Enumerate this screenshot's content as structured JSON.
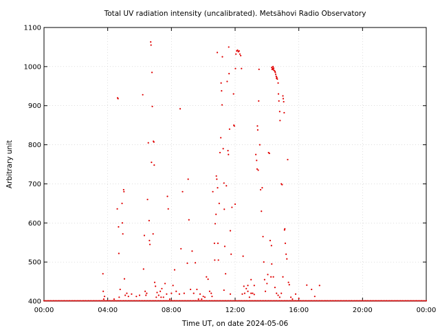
{
  "chart_data": {
    "type": "scatter",
    "title": "Total UV radiation intensity (uncalibrated). Metsähovi Radio Observatory",
    "xlabel": "Time UT, on date 2024-05-06",
    "ylabel": "Arbitrary unit",
    "x_unit": "hours UT",
    "xlim": [
      0,
      24
    ],
    "ylim": [
      400,
      1100
    ],
    "x_ticks": [
      {
        "value": 0,
        "label": "00:00"
      },
      {
        "value": 4,
        "label": "04:00"
      },
      {
        "value": 8,
        "label": "08:00"
      },
      {
        "value": 12,
        "label": "12:00"
      },
      {
        "value": 16,
        "label": "16:00"
      },
      {
        "value": 20,
        "label": "20:00"
      },
      {
        "value": 24,
        "label": "00:00"
      }
    ],
    "y_ticks": [
      {
        "value": 400,
        "label": "400"
      },
      {
        "value": 500,
        "label": "500"
      },
      {
        "value": 600,
        "label": "600"
      },
      {
        "value": 700,
        "label": "700"
      },
      {
        "value": 800,
        "label": "800"
      },
      {
        "value": 900,
        "label": "900"
      },
      {
        "value": 1000,
        "label": "1000"
      },
      {
        "value": 1100,
        "label": "1100"
      }
    ],
    "grid": true,
    "marker_color": "#e00000",
    "baseline": {
      "value": 401,
      "x_start": 0,
      "x_end": 24,
      "x_step": 0.1
    },
    "series": [
      {
        "points": [
          [
            3.7,
            470
          ],
          [
            3.72,
            425
          ],
          [
            3.75,
            405
          ],
          [
            3.8,
            412
          ],
          [
            4.6,
            636
          ],
          [
            4.62,
            920
          ],
          [
            4.65,
            918
          ],
          [
            4.68,
            590
          ],
          [
            4.7,
            522
          ],
          [
            4.72,
            410
          ],
          [
            4.78,
            430
          ],
          [
            4.9,
            650
          ],
          [
            4.92,
            600
          ],
          [
            4.95,
            572
          ],
          [
            5.0,
            685
          ],
          [
            5.02,
            680
          ],
          [
            5.05,
            457
          ],
          [
            5.1,
            415
          ],
          [
            5.2,
            420
          ],
          [
            5.3,
            412
          ],
          [
            6.2,
            928
          ],
          [
            6.25,
            482
          ],
          [
            6.3,
            568
          ],
          [
            6.35,
            425
          ],
          [
            6.4,
            415
          ],
          [
            6.45,
            420
          ],
          [
            6.5,
            660
          ],
          [
            6.55,
            805
          ],
          [
            6.6,
            606
          ],
          [
            6.62,
            555
          ],
          [
            6.65,
            545
          ],
          [
            6.7,
            1063
          ],
          [
            6.72,
            1055
          ],
          [
            6.75,
            755
          ],
          [
            6.78,
            985
          ],
          [
            6.8,
            898
          ],
          [
            6.85,
            572
          ],
          [
            6.87,
            809
          ],
          [
            6.9,
            807
          ],
          [
            6.92,
            748
          ],
          [
            6.95,
            448
          ],
          [
            7.0,
            438
          ],
          [
            7.05,
            410
          ],
          [
            7.1,
            422
          ],
          [
            7.2,
            415
          ],
          [
            7.3,
            425
          ],
          [
            7.4,
            432
          ],
          [
            7.5,
            410
          ],
          [
            7.6,
            445
          ],
          [
            7.7,
            418
          ],
          [
            7.75,
            668
          ],
          [
            7.8,
            636
          ],
          [
            7.9,
            405
          ],
          [
            8.0,
            420
          ],
          [
            8.1,
            440
          ],
          [
            8.2,
            480
          ],
          [
            8.3,
            425
          ],
          [
            8.5,
            418
          ],
          [
            8.55,
            892
          ],
          [
            8.6,
            534
          ],
          [
            8.7,
            680
          ],
          [
            8.8,
            420
          ],
          [
            9.0,
            497
          ],
          [
            9.05,
            712
          ],
          [
            9.1,
            608
          ],
          [
            9.2,
            430
          ],
          [
            9.3,
            528
          ],
          [
            9.4,
            420
          ],
          [
            9.5,
            498
          ],
          [
            9.6,
            430
          ],
          [
            9.7,
            405
          ],
          [
            9.8,
            418
          ],
          [
            10.0,
            412
          ],
          [
            10.2,
            462
          ],
          [
            10.3,
            456
          ],
          [
            10.4,
            425
          ],
          [
            10.6,
            680
          ],
          [
            10.7,
            548
          ],
          [
            10.72,
            505
          ],
          [
            10.75,
            598
          ],
          [
            10.8,
            622
          ],
          [
            10.82,
            720
          ],
          [
            10.85,
            712
          ],
          [
            10.88,
            1036
          ],
          [
            10.9,
            690
          ],
          [
            10.92,
            548
          ],
          [
            10.95,
            505
          ],
          [
            11.0,
            650
          ],
          [
            11.05,
            780
          ],
          [
            11.1,
            818
          ],
          [
            11.12,
            958
          ],
          [
            11.15,
            938
          ],
          [
            11.18,
            902
          ],
          [
            11.2,
            1025
          ],
          [
            11.25,
            790
          ],
          [
            11.3,
            702
          ],
          [
            11.32,
            635
          ],
          [
            11.35,
            540
          ],
          [
            11.4,
            470
          ],
          [
            11.45,
            695
          ],
          [
            11.5,
            962
          ],
          [
            11.55,
            785
          ],
          [
            11.58,
            775
          ],
          [
            11.6,
            1050
          ],
          [
            11.62,
            982
          ],
          [
            11.65,
            840
          ],
          [
            11.7,
            580
          ],
          [
            11.75,
            520
          ],
          [
            11.8,
            640
          ],
          [
            11.9,
            930
          ],
          [
            11.92,
            850
          ],
          [
            11.95,
            848
          ],
          [
            12.0,
            648
          ],
          [
            12.02,
            995
          ],
          [
            12.05,
            1032
          ],
          [
            12.1,
            1040
          ],
          [
            12.15,
            1042
          ],
          [
            12.2,
            1038
          ],
          [
            12.25,
            1040
          ],
          [
            12.3,
            1032
          ],
          [
            12.35,
            1028
          ],
          [
            12.4,
            995
          ],
          [
            12.45,
            418
          ],
          [
            12.5,
            515
          ],
          [
            12.55,
            438
          ],
          [
            12.6,
            420
          ],
          [
            12.7,
            432
          ],
          [
            12.8,
            425
          ],
          [
            12.9,
            410
          ],
          [
            13.0,
            420
          ],
          [
            13.1,
            420
          ],
          [
            13.2,
            417
          ],
          [
            13.3,
            775
          ],
          [
            13.35,
            760
          ],
          [
            13.38,
            738
          ],
          [
            13.4,
            848
          ],
          [
            13.42,
            838
          ],
          [
            13.45,
            735
          ],
          [
            13.48,
            912
          ],
          [
            13.5,
            993
          ],
          [
            13.55,
            800
          ],
          [
            13.6,
            685
          ],
          [
            13.65,
            630
          ],
          [
            13.7,
            690
          ],
          [
            13.75,
            565
          ],
          [
            13.8,
            500
          ],
          [
            13.85,
            455
          ],
          [
            13.9,
            425
          ],
          [
            14.0,
            445
          ],
          [
            14.05,
            468
          ],
          [
            14.3,
            998
          ],
          [
            14.32,
            993
          ],
          [
            14.35,
            995
          ],
          [
            14.38,
            1000
          ],
          [
            14.4,
            992
          ],
          [
            14.42,
            996
          ],
          [
            14.45,
            990
          ],
          [
            14.5,
            988
          ],
          [
            14.52,
            985
          ],
          [
            14.55,
            980
          ],
          [
            14.58,
            975
          ],
          [
            14.6,
            970
          ],
          [
            14.62,
            972
          ],
          [
            14.65,
            968
          ],
          [
            14.7,
            958
          ],
          [
            14.72,
            930
          ],
          [
            14.75,
            912
          ],
          [
            14.8,
            885
          ],
          [
            14.82,
            862
          ],
          [
            14.9,
            700
          ],
          [
            14.95,
            698
          ],
          [
            15.0,
            925
          ],
          [
            15.02,
            918
          ],
          [
            15.05,
            910
          ],
          [
            15.08,
            882
          ],
          [
            15.1,
            582
          ],
          [
            15.12,
            585
          ],
          [
            15.15,
            548
          ],
          [
            15.2,
            520
          ],
          [
            15.25,
            508
          ],
          [
            15.3,
            762
          ],
          [
            15.35,
            448
          ],
          [
            15.4,
            442
          ],
          [
            14.1,
            780
          ],
          [
            14.15,
            778
          ],
          [
            14.2,
            555
          ],
          [
            14.25,
            462
          ],
          [
            14.28,
            542
          ],
          [
            14.3,
            495
          ],
          [
            14.4,
            462
          ],
          [
            14.5,
            435
          ],
          [
            14.6,
            420
          ],
          [
            14.7,
            415
          ],
          [
            14.8,
            410
          ],
          [
            14.9,
            420
          ],
          [
            15.0,
            462
          ],
          [
            15.5,
            410
          ],
          [
            15.6,
            405
          ],
          [
            15.8,
            418
          ],
          [
            16.0,
            407
          ],
          [
            16.5,
            441
          ],
          [
            16.8,
            430
          ],
          [
            17.0,
            412
          ],
          [
            17.3,
            440
          ],
          [
            10.5,
            420
          ],
          [
            10.55,
            412
          ],
          [
            11.3,
            428
          ],
          [
            11.7,
            418
          ],
          [
            12.8,
            440
          ],
          [
            13.0,
            455
          ],
          [
            13.2,
            440
          ],
          [
            9.9,
            405
          ],
          [
            10.1,
            410
          ],
          [
            7.35,
            410
          ],
          [
            6.0,
            415
          ],
          [
            5.5,
            418
          ],
          [
            5.8,
            412
          ],
          [
            4.4,
            405
          ]
        ]
      }
    ]
  }
}
